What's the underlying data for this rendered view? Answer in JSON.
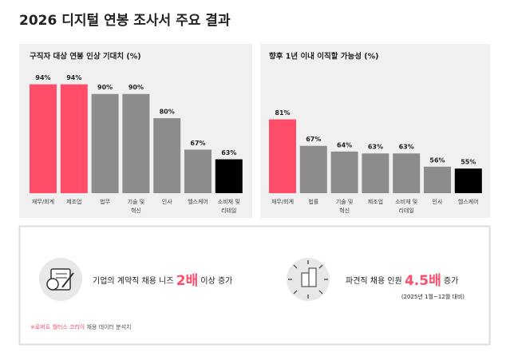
{
  "title": "2026 디지털 연봉 조사서 주요 결과",
  "chart_data": [
    {
      "type": "bar",
      "title": "구직자 대상 연봉 인상 기대치 (%)",
      "categories": [
        "재무/회계",
        "제조업",
        "법무",
        "기술 및\n혁신",
        "인사",
        "헬스케어",
        "소비재 및\n리테일"
      ],
      "values": [
        94,
        94,
        90,
        90,
        80,
        67,
        63
      ],
      "value_labels": [
        "94%",
        "94%",
        "90%",
        "90%",
        "80%",
        "67%",
        "63%"
      ],
      "colors": [
        "#ff4d6a",
        "#ff4d6a",
        "#8c8c8c",
        "#8c8c8c",
        "#8c8c8c",
        "#8c8c8c",
        "#000000"
      ],
      "ylim": [
        49,
        97.5
      ]
    },
    {
      "type": "bar",
      "title": "향후 1년 이내 이직할 가능성 (%)",
      "categories": [
        "재무/회계",
        "법률",
        "기술 및\n혁신",
        "제조업",
        "소비재 및\n리테일",
        "인사",
        "헬스케어"
      ],
      "values": [
        81,
        67,
        64,
        63,
        63,
        56,
        55
      ],
      "value_labels": [
        "81%",
        "67%",
        "64%",
        "63%",
        "63%",
        "56%",
        "55%"
      ],
      "colors": [
        "#ff4d6a",
        "#8c8c8c",
        "#8c8c8c",
        "#8c8c8c",
        "#8c8c8c",
        "#8c8c8c",
        "#000000"
      ],
      "ylim": [
        42,
        104
      ]
    }
  ],
  "highlights": [
    {
      "before": "기업의 계약직 채용 니즈",
      "emphasis": "2배",
      "after": "이상 증가"
    },
    {
      "before": "파견직 채용 인원",
      "emphasis": "4.5배",
      "after": "증가",
      "note": "(2025년 1월~12월 대비)"
    }
  ],
  "footnote": {
    "source": "※로버트 월터스 코리아",
    "text": "채용 데이터 분석치"
  }
}
